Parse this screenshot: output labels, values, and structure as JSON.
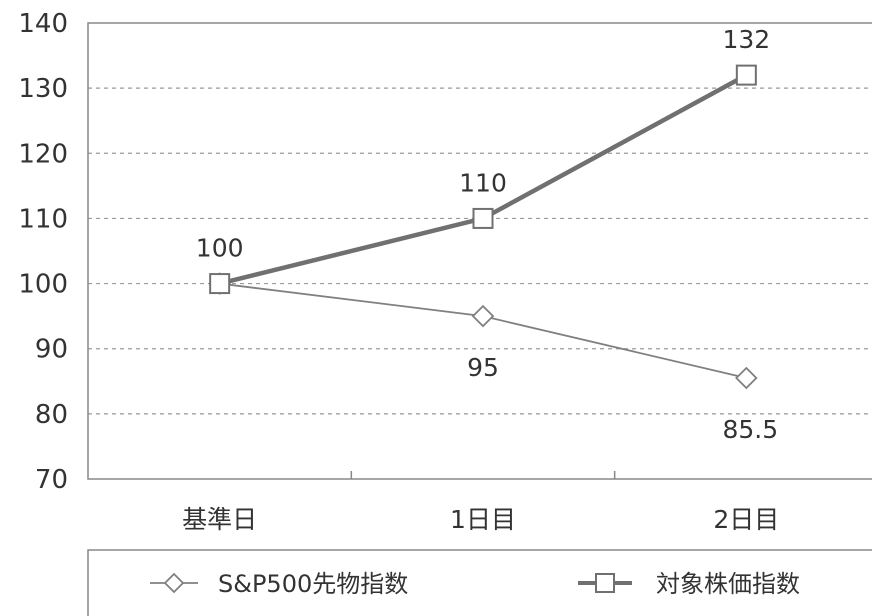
{
  "chart_data": {
    "type": "line",
    "categories": [
      "基準日",
      "1日目",
      "2日目"
    ],
    "ylim": [
      70,
      140
    ],
    "y_ticks": [
      "70",
      "80",
      "90",
      "100",
      "110",
      "120",
      "130",
      "140"
    ],
    "grid": true,
    "legend_position": "bottom",
    "series": [
      {
        "name": "S&P500先物指数",
        "values": [
          100,
          95,
          85.5
        ],
        "labels": [
          "",
          "95",
          "85.5"
        ],
        "marker": "diamond",
        "color": "#808080"
      },
      {
        "name": "対象株価指数",
        "values": [
          100,
          110,
          132
        ],
        "labels": [
          "100",
          "110",
          "132"
        ],
        "marker": "square",
        "color": "#707070"
      }
    ]
  }
}
